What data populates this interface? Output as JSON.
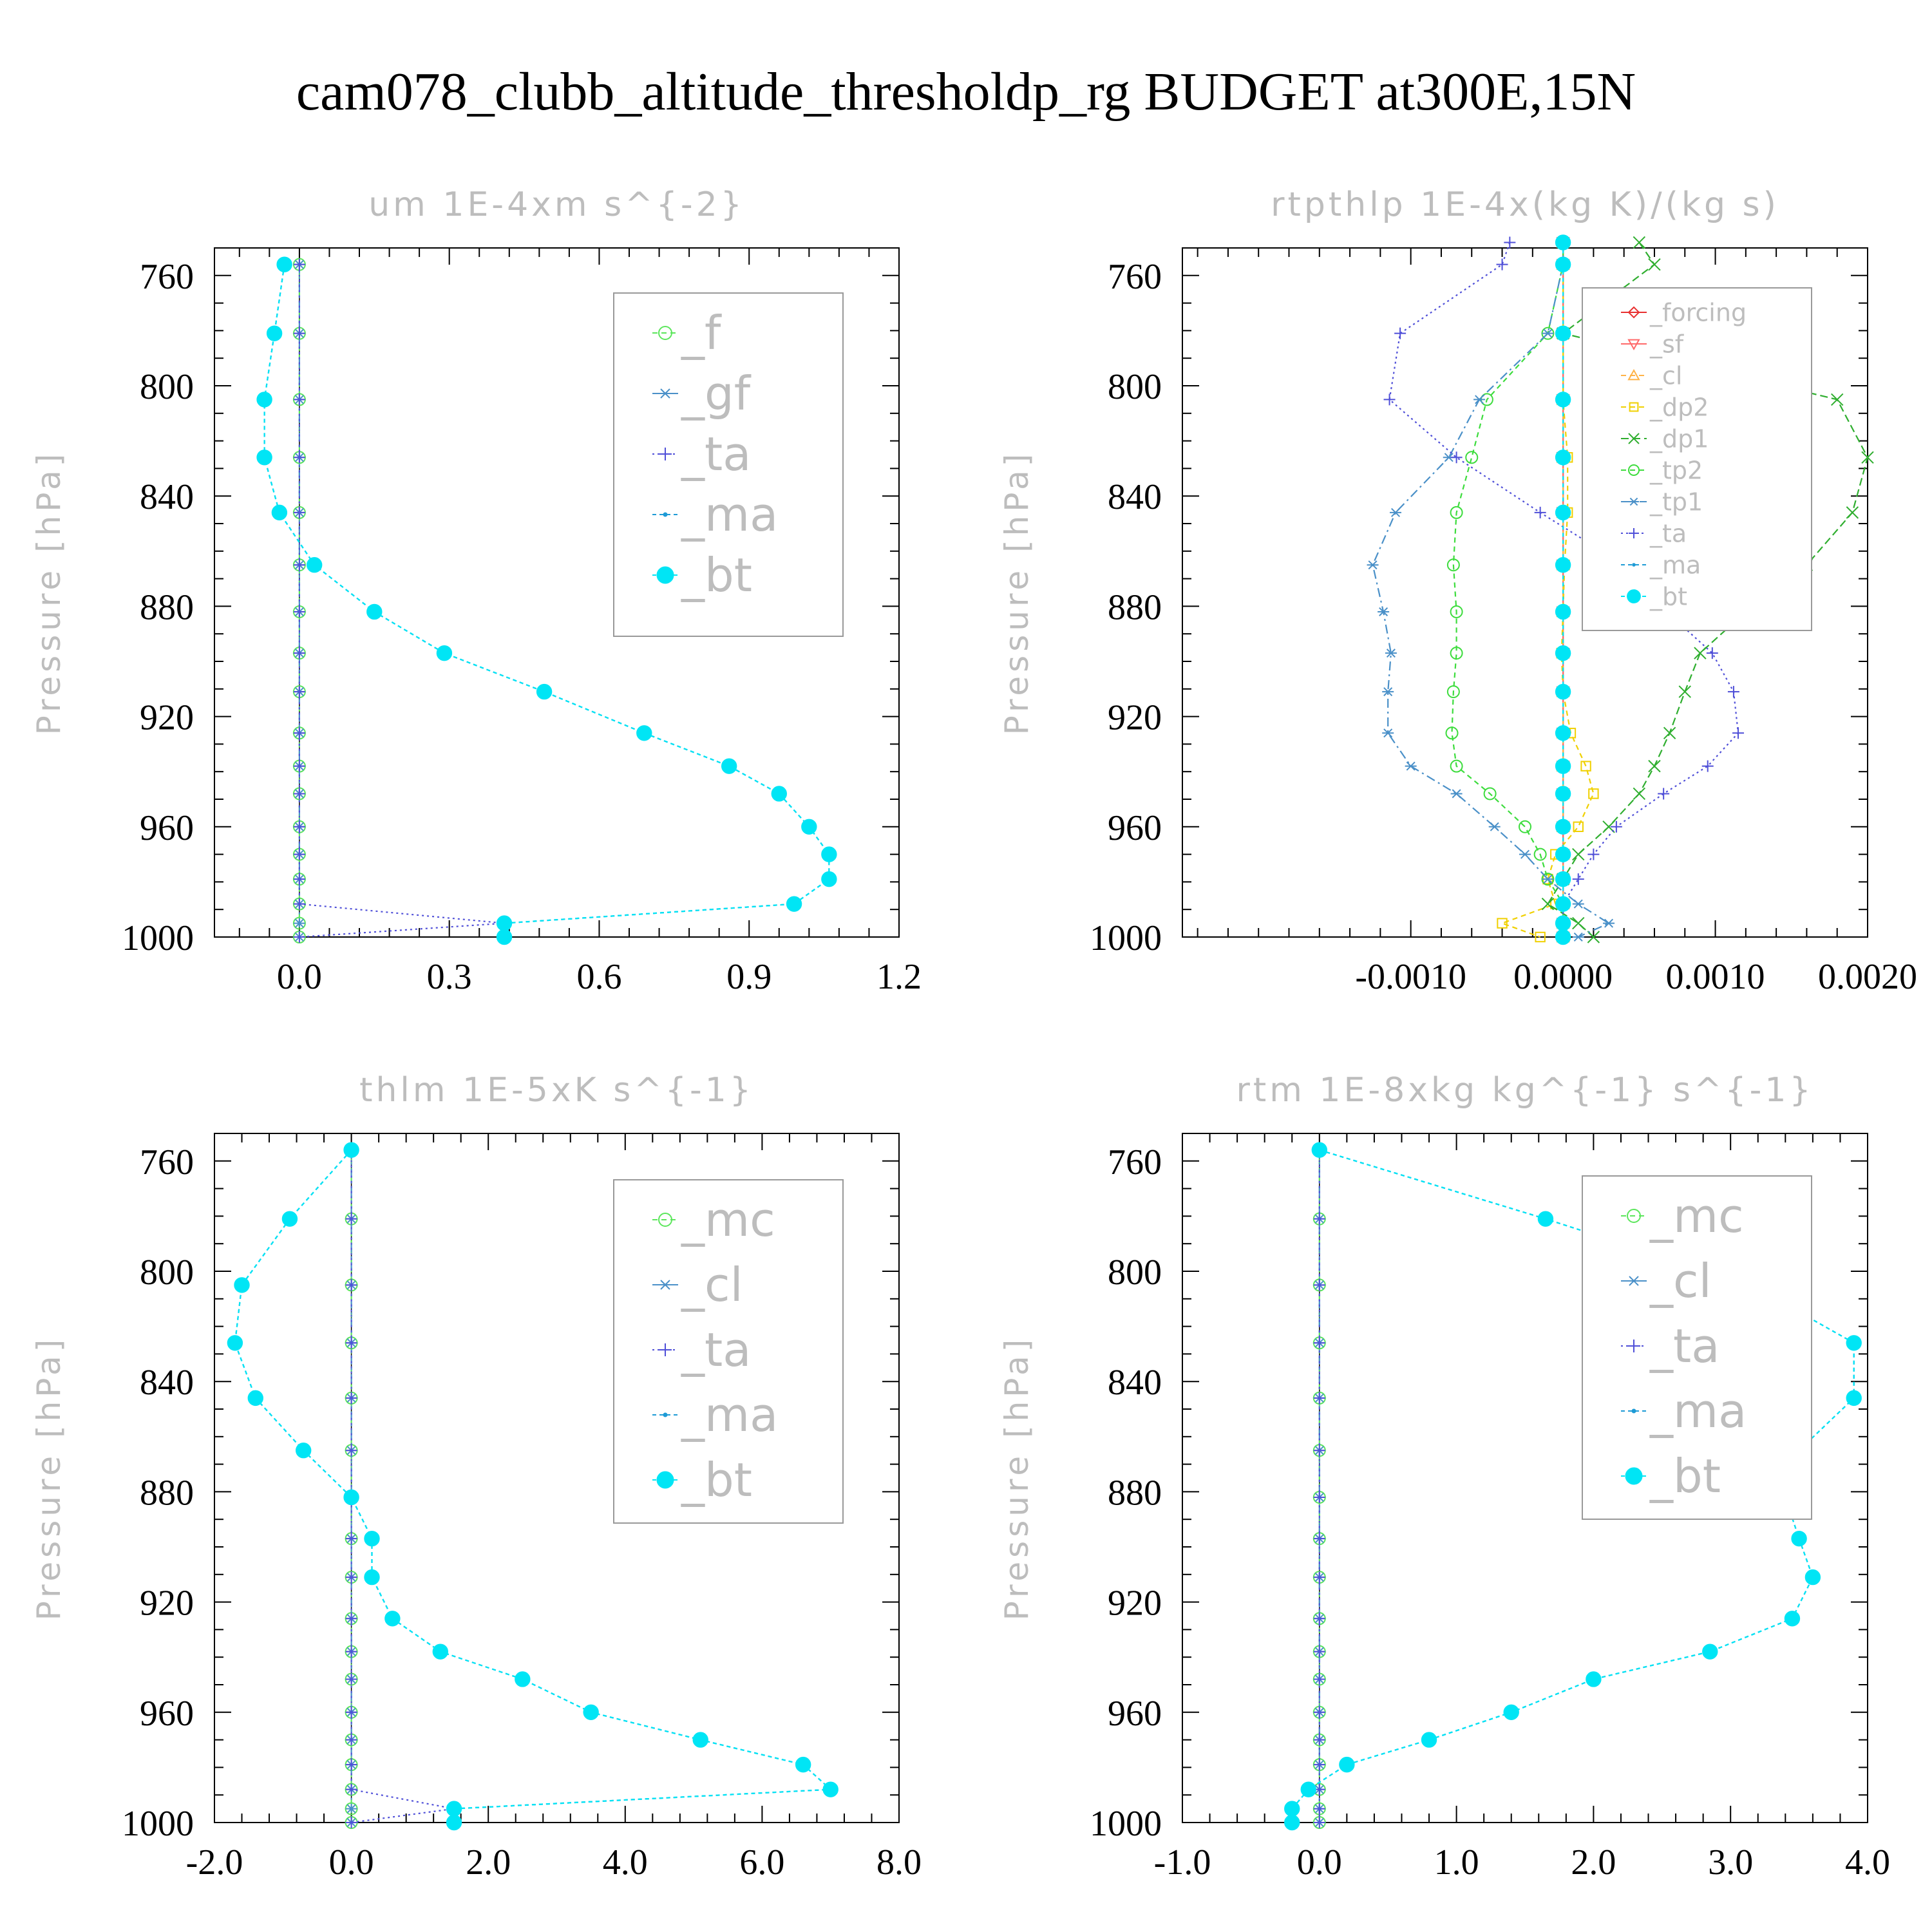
{
  "figure": {
    "title": "cam078_clubb_altitude_thresholdp_rg  BUDGET at300E,15N"
  },
  "chart_data": [
    {
      "type": "line",
      "title": "um  1E-4xm s^{-2}",
      "xlabel": "",
      "ylabel": "Pressure [hPa]",
      "xlim": [
        -0.17,
        1.2
      ],
      "ylim": [
        1000,
        750
      ],
      "y_inverted": true,
      "xticks": [
        "0.0",
        "0.3",
        "0.6",
        "0.9",
        "1.2"
      ],
      "xtick_values": [
        0.0,
        0.3,
        0.6,
        0.9,
        1.2
      ],
      "yticks": [
        "760",
        "800",
        "840",
        "880",
        "920",
        "960",
        "1000"
      ],
      "ytick_values": [
        760,
        800,
        840,
        880,
        920,
        960,
        1000
      ],
      "legend_position": "top-right",
      "legend_font_size": 72,
      "pressure_levels": [
        756,
        781,
        805,
        826,
        846,
        865,
        882,
        897,
        911,
        926,
        938,
        948,
        960,
        970,
        979,
        988,
        995,
        1000
      ],
      "series": [
        {
          "name": "_f",
          "color": "#5ce65c",
          "marker": "circle",
          "dash": "8,6",
          "values": [
            0,
            0,
            0,
            0,
            0,
            0,
            0,
            0,
            0,
            0,
            0,
            0,
            0,
            0,
            0,
            0,
            0,
            0
          ]
        },
        {
          "name": "_gf",
          "color": "#4a90c8",
          "marker": "asterisk",
          "dash": "14,6,3,6",
          "values": [
            0,
            0,
            0,
            0,
            0,
            0,
            0,
            0,
            0,
            0,
            0,
            0,
            0,
            0,
            0,
            0,
            0,
            0
          ]
        },
        {
          "name": "_ta",
          "color": "#4f4fd8",
          "marker": "plus",
          "dash": "3,5",
          "values": [
            0,
            0,
            0,
            0,
            0,
            0,
            0,
            0,
            0,
            0,
            0,
            0,
            0,
            0,
            0,
            0,
            0.41,
            0
          ]
        },
        {
          "name": "_ma",
          "color": "#1e9bd6",
          "marker": "dot",
          "dash": "6,5",
          "values": [
            -0.03,
            -0.05,
            -0.07,
            -0.07,
            -0.04,
            0.03,
            0.15,
            0.29,
            0.49,
            0.69,
            0.86,
            0.96,
            1.02,
            1.06,
            1.06,
            0.99,
            0.41,
            0.41
          ]
        },
        {
          "name": "_bt",
          "color": "#00e5f5",
          "marker": "filled-circle",
          "dash": "6,5",
          "values": [
            -0.03,
            -0.05,
            -0.07,
            -0.07,
            -0.04,
            0.03,
            0.15,
            0.29,
            0.49,
            0.69,
            0.86,
            0.96,
            1.02,
            1.06,
            1.06,
            0.99,
            0.41,
            0.41
          ]
        }
      ]
    },
    {
      "type": "line",
      "title": "rtpthlp  1E-4x(kg K)/(kg s)",
      "xlabel": "",
      "ylabel": "Pressure [hPa]",
      "xlim": [
        -0.0025,
        0.002
      ],
      "ylim": [
        1000,
        750
      ],
      "y_inverted": true,
      "xticks": [
        "-0.0010",
        "0.0000",
        "0.0010",
        "0.0020"
      ],
      "xtick_values": [
        -0.001,
        0.0,
        0.001,
        0.002
      ],
      "yticks": [
        "760",
        "800",
        "840",
        "880",
        "920",
        "960",
        "1000"
      ],
      "ytick_values": [
        760,
        800,
        840,
        880,
        920,
        960,
        1000
      ],
      "legend_position": "top-right",
      "legend_font_size": 38,
      "pressure_levels": [
        748,
        756,
        781,
        805,
        826,
        846,
        865,
        882,
        897,
        911,
        926,
        938,
        948,
        960,
        970,
        979,
        988,
        995,
        1000
      ],
      "series": [
        {
          "name": "_forcing",
          "color": "#e83030",
          "marker": "diamond",
          "dash": "",
          "values": [
            0,
            0,
            0,
            0,
            0,
            0,
            0,
            0,
            0,
            0,
            0,
            0,
            0,
            0,
            0,
            0,
            0,
            0,
            0
          ]
        },
        {
          "name": "_sf",
          "color": "#ff6a6a",
          "marker": "triangle-down",
          "dash": "",
          "values": [
            0,
            0,
            0,
            0,
            0,
            0,
            0,
            0,
            0,
            0,
            0,
            0,
            0,
            0,
            0,
            0,
            0,
            0,
            0
          ]
        },
        {
          "name": "_cl",
          "color": "#ffb347",
          "marker": "triangle-up",
          "dash": "8,6",
          "values": [
            0,
            0,
            0,
            0,
            0,
            0,
            0,
            0,
            0,
            0,
            0,
            0,
            0,
            0,
            0,
            0,
            0,
            0,
            0
          ]
        },
        {
          "name": "_dp2",
          "color": "#f0d000",
          "marker": "square",
          "dash": "8,6",
          "values": [
            0,
            0,
            0,
            0,
            3e-05,
            3e-05,
            1e-05,
            0,
            -1e-05,
            0,
            5e-05,
            0.00015,
            0.0002,
            0.0001,
            -5e-05,
            -0.0001,
            -5e-05,
            -0.0004,
            -0.00015
          ]
        },
        {
          "name": "_dp1",
          "color": "#2fae2f",
          "marker": "cross",
          "dash": "12,6",
          "values": [
            0.0005,
            0.0006,
            0,
            0.0018,
            0.002,
            0.0019,
            0.0016,
            0.0012,
            0.0009,
            0.0008,
            0.0007,
            0.0006,
            0.0005,
            0.0003,
            0.0001,
            0,
            -0.0001,
            0.0001,
            0.0002
          ]
        },
        {
          "name": "_tp2",
          "color": "#3ddc3d",
          "marker": "circle",
          "dash": "8,6",
          "values": [
            0,
            0,
            -0.0001,
            -0.0005,
            -0.0006,
            -0.0007,
            -0.00072,
            -0.0007,
            -0.0007,
            -0.00072,
            -0.00073,
            -0.0007,
            -0.00048,
            -0.00025,
            -0.00015,
            -0.0001,
            0,
            0,
            0
          ]
        },
        {
          "name": "_tp1",
          "color": "#4a90c8",
          "marker": "asterisk",
          "dash": "14,6,3,6",
          "values": [
            0,
            0,
            -0.0001,
            -0.00055,
            -0.00075,
            -0.0011,
            -0.00125,
            -0.00118,
            -0.00113,
            -0.00115,
            -0.00115,
            -0.001,
            -0.0007,
            -0.00045,
            -0.00025,
            -0.0001,
            0.0001,
            0.0003,
            0.0001
          ]
        },
        {
          "name": "_ta",
          "color": "#4f4fd8",
          "marker": "plus",
          "dash": "3,5",
          "values": [
            -0.00035,
            -0.0004,
            -0.00107,
            -0.00114,
            -0.0007,
            -0.00015,
            0.0004,
            0.00068,
            0.00098,
            0.00112,
            0.00115,
            0.00095,
            0.00066,
            0.00035,
            0.0002,
            0.0001,
            0,
            0,
            0
          ]
        },
        {
          "name": "_ma",
          "color": "#1e9bd6",
          "marker": "dot",
          "dash": "6,5",
          "values": [
            0,
            0,
            0,
            0,
            0,
            0,
            0,
            0,
            0,
            0,
            0,
            0,
            0,
            0,
            0,
            0,
            0,
            0,
            0
          ]
        },
        {
          "name": "_bt",
          "color": "#00e5f5",
          "marker": "filled-circle",
          "dash": "6,5",
          "values": [
            0,
            0,
            0,
            0,
            0,
            0,
            0,
            0,
            0,
            0,
            0,
            0,
            0,
            0,
            0,
            0,
            0,
            0,
            0
          ]
        }
      ]
    },
    {
      "type": "line",
      "title": "thlm  1E-5xK s^{-1}",
      "xlabel": "",
      "ylabel": "Pressure [hPa]",
      "xlim": [
        -2.0,
        8.0
      ],
      "ylim": [
        1000,
        750
      ],
      "y_inverted": true,
      "xticks": [
        "-2.0",
        "0.0",
        "2.0",
        "4.0",
        "6.0",
        "8.0"
      ],
      "xtick_values": [
        -2.0,
        0.0,
        2.0,
        4.0,
        6.0,
        8.0
      ],
      "yticks": [
        "760",
        "800",
        "840",
        "880",
        "920",
        "960",
        "1000"
      ],
      "ytick_values": [
        760,
        800,
        840,
        880,
        920,
        960,
        1000
      ],
      "legend_position": "top-right",
      "legend_font_size": 72,
      "pressure_levels": [
        756,
        781,
        805,
        826,
        846,
        865,
        882,
        897,
        911,
        926,
        938,
        948,
        960,
        970,
        979,
        988,
        995,
        1000
      ],
      "series": [
        {
          "name": "_mc",
          "color": "#5ce65c",
          "marker": "circle",
          "dash": "8,6",
          "values": [
            0,
            0,
            0,
            0,
            0,
            0,
            0,
            0,
            0,
            0,
            0,
            0,
            0,
            0,
            0,
            0,
            0,
            0
          ]
        },
        {
          "name": "_cl",
          "color": "#4a90c8",
          "marker": "asterisk",
          "dash": "14,6,3,6",
          "values": [
            0,
            0,
            0,
            0,
            0,
            0,
            0,
            0,
            0,
            0,
            0,
            0,
            0,
            0,
            0,
            0,
            0,
            0
          ]
        },
        {
          "name": "_ta",
          "color": "#4f4fd8",
          "marker": "plus",
          "dash": "3,5",
          "values": [
            0,
            0,
            0,
            0,
            0,
            0,
            0,
            0,
            0,
            0,
            0,
            0,
            0,
            0,
            0,
            0,
            1.5,
            0
          ]
        },
        {
          "name": "_ma",
          "color": "#1e9bd6",
          "marker": "dot",
          "dash": "6,5",
          "values": [
            0,
            -0.9,
            -1.6,
            -1.7,
            -1.4,
            -0.7,
            0,
            0.3,
            0.3,
            0.6,
            1.3,
            2.5,
            3.5,
            5.1,
            6.6,
            7.0,
            1.5,
            1.5
          ]
        },
        {
          "name": "_bt",
          "color": "#00e5f5",
          "marker": "filled-circle",
          "dash": "6,5",
          "values": [
            0,
            -0.9,
            -1.6,
            -1.7,
            -1.4,
            -0.7,
            0,
            0.3,
            0.3,
            0.6,
            1.3,
            2.5,
            3.5,
            5.1,
            6.6,
            7.0,
            1.5,
            1.5
          ]
        }
      ]
    },
    {
      "type": "line",
      "title": "rtm  1E-8xkg kg^{-1} s^{-1}",
      "xlabel": "",
      "ylabel": "Pressure [hPa]",
      "xlim": [
        -1.0,
        4.0
      ],
      "ylim": [
        1000,
        750
      ],
      "y_inverted": true,
      "xticks": [
        "-1.0",
        "0.0",
        "1.0",
        "2.0",
        "3.0",
        "4.0"
      ],
      "xtick_values": [
        -1.0,
        0.0,
        1.0,
        2.0,
        3.0,
        4.0
      ],
      "yticks": [
        "760",
        "800",
        "840",
        "880",
        "920",
        "960",
        "1000"
      ],
      "ytick_values": [
        760,
        800,
        840,
        880,
        920,
        960,
        1000
      ],
      "legend_position": "top-right",
      "legend_font_size": 72,
      "pressure_levels": [
        756,
        781,
        805,
        826,
        846,
        865,
        882,
        897,
        911,
        926,
        938,
        948,
        960,
        970,
        979,
        988,
        995,
        1000
      ],
      "series": [
        {
          "name": "_mc",
          "color": "#5ce65c",
          "marker": "circle",
          "dash": "8,6",
          "values": [
            0,
            0,
            0,
            0,
            0,
            0,
            0,
            0,
            0,
            0,
            0,
            0,
            0,
            0,
            0,
            0,
            0,
            0
          ]
        },
        {
          "name": "_cl",
          "color": "#4a90c8",
          "marker": "asterisk",
          "dash": "14,6,3,6",
          "values": [
            0,
            0,
            0,
            0,
            0,
            0,
            0,
            0,
            0,
            0,
            0,
            0,
            0,
            0,
            0,
            0,
            0,
            0
          ]
        },
        {
          "name": "_ta",
          "color": "#4f4fd8",
          "marker": "plus",
          "dash": "3,5",
          "values": [
            0,
            0,
            0,
            0,
            0,
            0,
            0,
            0,
            0,
            0,
            0,
            0,
            0,
            0,
            0,
            0,
            0,
            0
          ]
        },
        {
          "name": "_ma",
          "color": "#1e9bd6",
          "marker": "dot",
          "dash": "6,5",
          "values": [
            0,
            1.65,
            3.15,
            3.9,
            3.9,
            3.5,
            3.4,
            3.5,
            3.6,
            3.45,
            2.85,
            2.0,
            1.4,
            0.8,
            0.2,
            -0.08,
            -0.2,
            -0.2
          ]
        },
        {
          "name": "_bt",
          "color": "#00e5f5",
          "marker": "filled-circle",
          "dash": "6,5",
          "values": [
            0,
            1.65,
            3.15,
            3.9,
            3.9,
            3.5,
            3.4,
            3.5,
            3.6,
            3.45,
            2.85,
            2.0,
            1.4,
            0.8,
            0.2,
            -0.08,
            -0.2,
            -0.2
          ]
        }
      ]
    }
  ]
}
